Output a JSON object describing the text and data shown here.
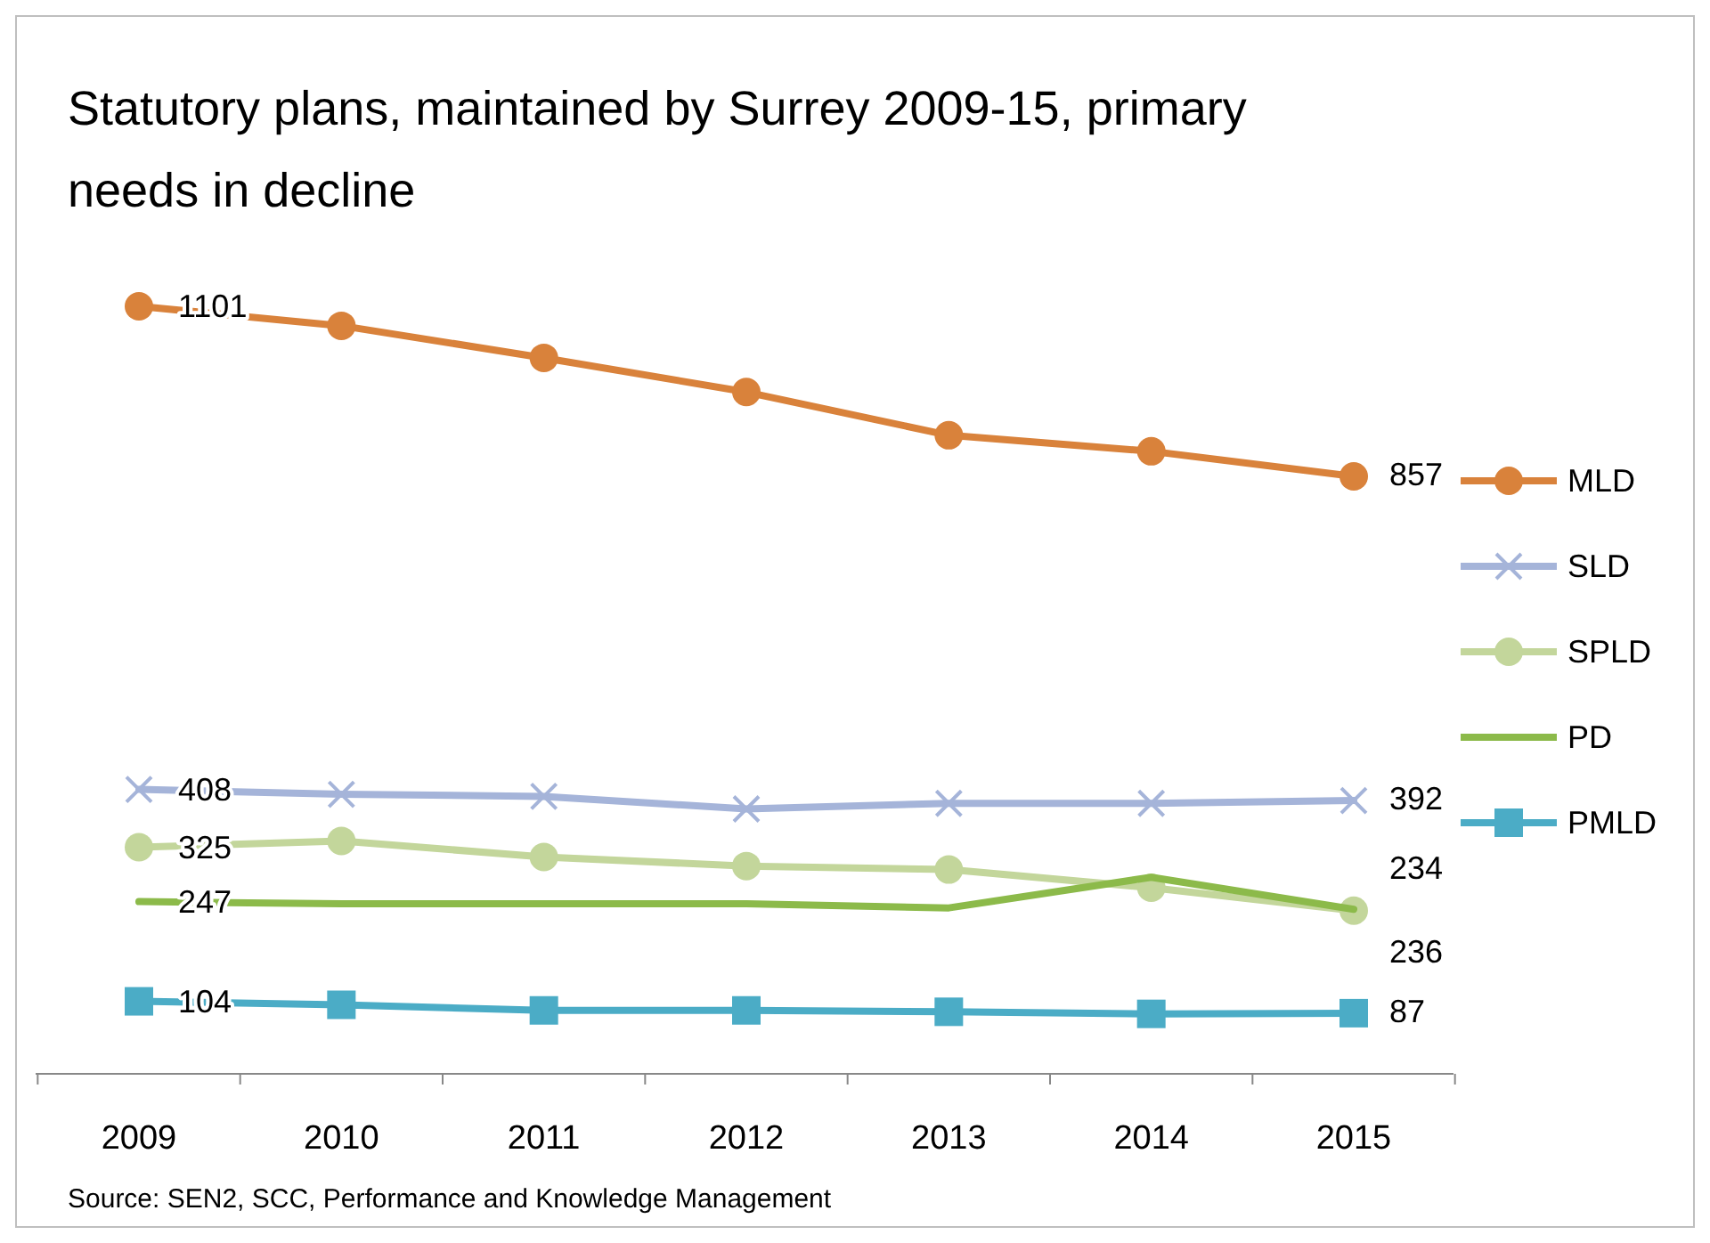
{
  "chart_data": {
    "type": "line",
    "title": "Statutory plans, maintained by Surrey 2009-15, primary needs in decline",
    "categories": [
      "2009",
      "2010",
      "2011",
      "2012",
      "2013",
      "2014",
      "2015"
    ],
    "series": [
      {
        "name": "MLD",
        "color": "#d9823b",
        "marker": "circle",
        "values": [
          1101,
          1073,
          1027,
          978,
          916,
          893,
          857
        ],
        "value_labels": [
          "1101",
          null,
          null,
          null,
          null,
          null,
          "857"
        ]
      },
      {
        "name": "SLD",
        "color": "#a5b4d9",
        "marker": "cross",
        "values": [
          408,
          401,
          398,
          380,
          388,
          388,
          392
        ],
        "value_labels": [
          "408",
          null,
          null,
          null,
          null,
          null,
          "392"
        ]
      },
      {
        "name": "SPLD",
        "color": "#c3d69b",
        "marker": "circle",
        "values": [
          325,
          334,
          311,
          298,
          293,
          267,
          234
        ],
        "value_labels": [
          "325",
          null,
          null,
          null,
          null,
          null,
          "234"
        ]
      },
      {
        "name": "PD",
        "color": "#8cba4a",
        "marker": "none",
        "values": [
          247,
          244,
          244,
          244,
          238,
          282,
          236
        ],
        "value_labels": [
          "247",
          null,
          null,
          null,
          null,
          null,
          "236"
        ]
      },
      {
        "name": "PMLD",
        "color": "#4bacc6",
        "marker": "square",
        "values": [
          104,
          99,
          91,
          91,
          89,
          86,
          87
        ],
        "value_labels": [
          "104",
          null,
          null,
          null,
          null,
          null,
          "87"
        ]
      }
    ],
    "legend": "right",
    "annotations": [
      "Source: SEN2, SCC, Performance and Knowledge Management"
    ]
  }
}
